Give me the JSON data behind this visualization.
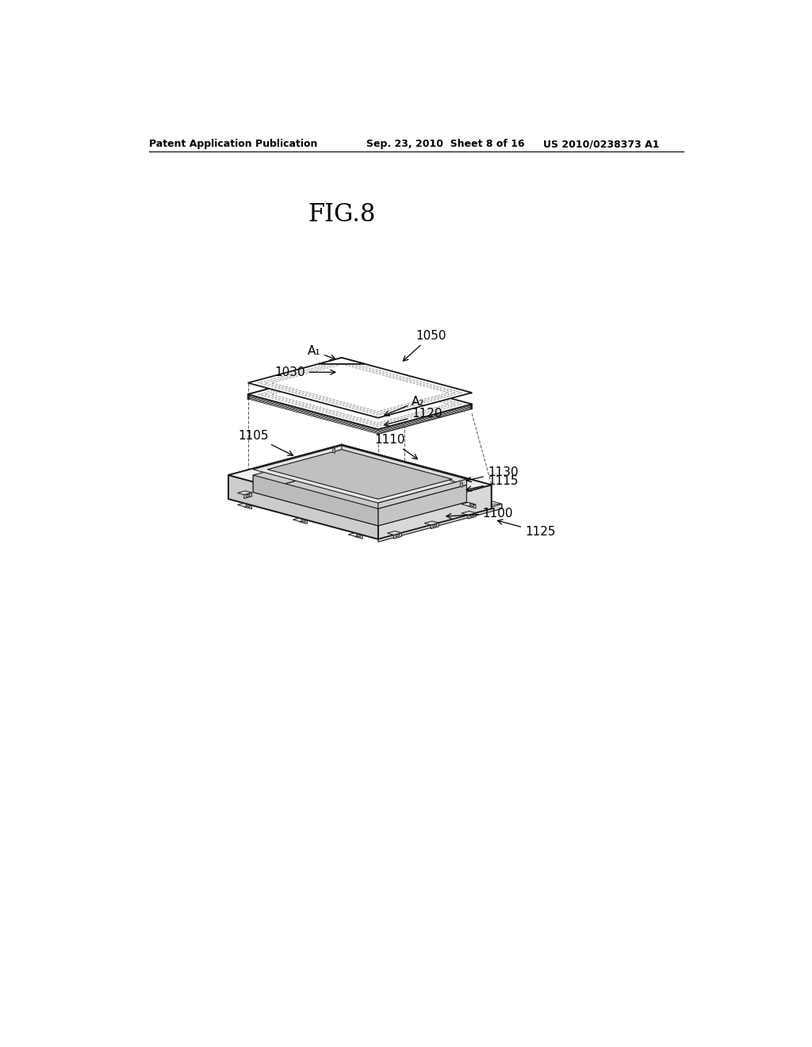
{
  "bg_color": "#ffffff",
  "header_left": "Patent Application Publication",
  "header_mid": "Sep. 23, 2010  Sheet 8 of 16",
  "header_right": "US 2010/0238373 A1",
  "fig_label": "FIG.8",
  "line_color": "#1a1a1a",
  "dash_color": "#666666"
}
